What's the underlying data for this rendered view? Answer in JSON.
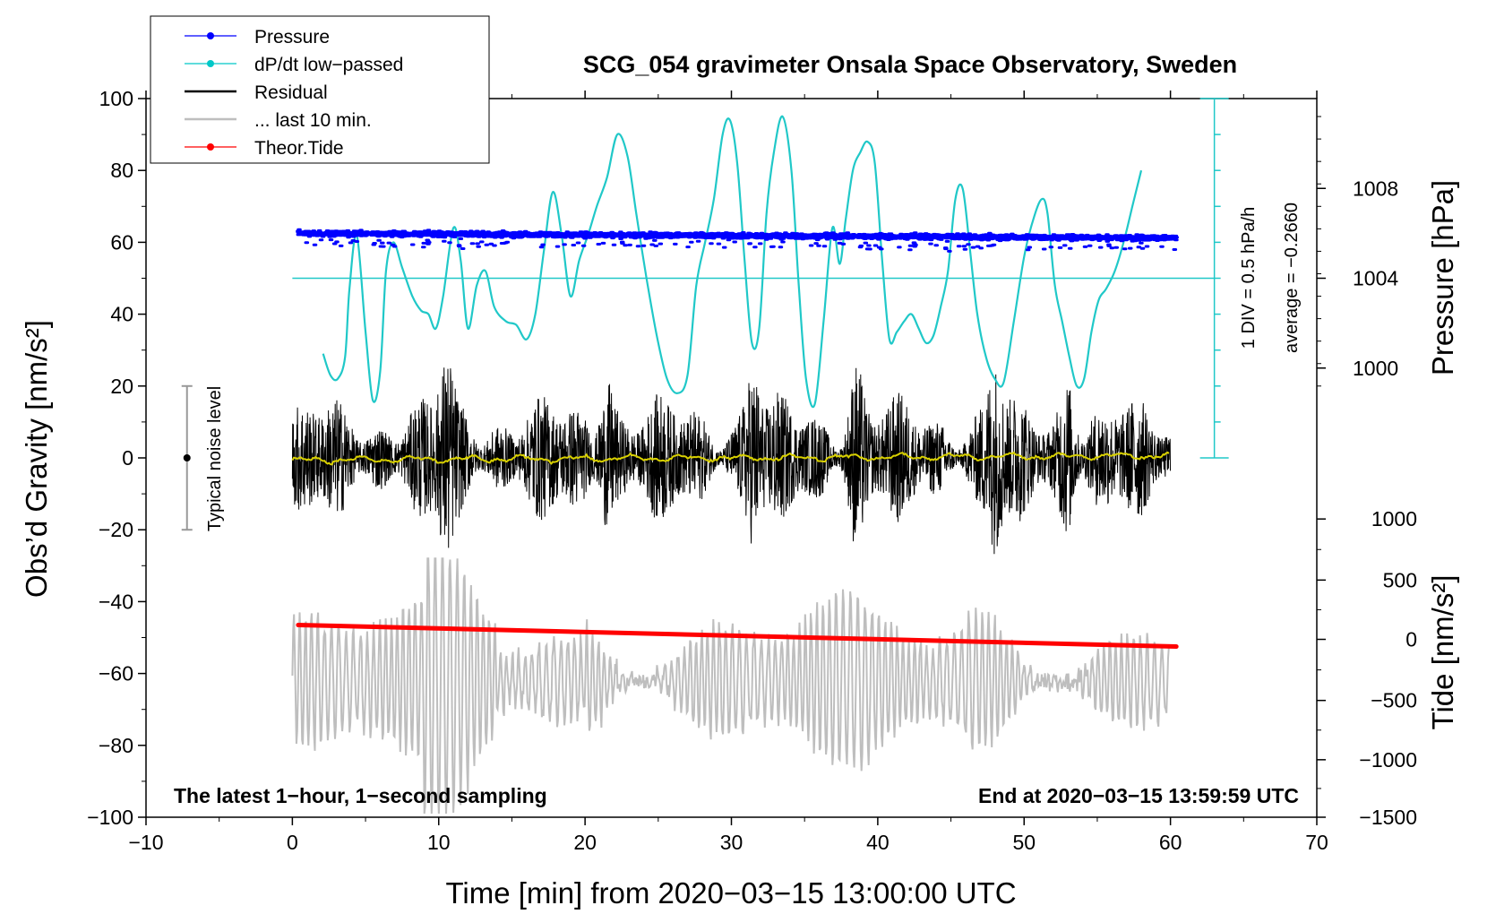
{
  "chart_data": {
    "type": "line",
    "title": "SCG_054 gravimeter Onsala Space Observatory, Sweden",
    "xlabel": "Time [min] from 2020−03−15 13:00:00 UTC",
    "ylabel_left": "Obs’d Gravity [nm/s²]",
    "ylabel_pressure": "Pressure [hPa]",
    "ylabel_tide": "Tide [nm/s²]",
    "xlim": [
      -10,
      70
    ],
    "ylim": [
      -100,
      100
    ],
    "x_ticks": [
      "−10",
      "0",
      "10",
      "20",
      "30",
      "40",
      "50",
      "60",
      "70"
    ],
    "x_tick_values": [
      -10,
      0,
      10,
      20,
      30,
      40,
      50,
      60,
      70
    ],
    "y_ticks": [
      "100",
      "80",
      "60",
      "40",
      "20",
      "0",
      "−20",
      "−40",
      "−60",
      "−80",
      "−100"
    ],
    "y_tick_values": [
      100,
      80,
      60,
      40,
      20,
      0,
      -20,
      -40,
      -60,
      -80,
      -100
    ],
    "pressure_axis": {
      "ticks": [
        "1008",
        "1004",
        "1000"
      ],
      "tick_values": [
        1008,
        1004,
        1000
      ],
      "maps_to_gravity": [
        75,
        50,
        25
      ]
    },
    "tide_axis": {
      "ticks": [
        "1000",
        "500",
        "0",
        "−500",
        "−1000",
        "−1500"
      ],
      "tick_values": [
        1000,
        500,
        0,
        -500,
        -1000,
        -1500
      ],
      "maps_to_gravity": [
        -17,
        -34,
        -50.5,
        -67.5,
        -84,
        -100
      ]
    },
    "legend": [
      {
        "label": "Pressure",
        "color": "#0000ff",
        "marker": "dot"
      },
      {
        "label": "dP/dt low−passed",
        "color": "#00c8c8",
        "marker": "dot"
      },
      {
        "label": "Residual",
        "color": "#000000",
        "marker": "line"
      },
      {
        "label": "... last 10 min.",
        "color": "#bebebe",
        "marker": "line"
      },
      {
        "label": "Theor.Tide",
        "color": "#ff0000",
        "marker": "dot"
      }
    ],
    "annotations": {
      "scale_bar": "1 DIV = 0.5 hPa/h",
      "average": "average = −0.2660",
      "noise_label": "Typical noise level",
      "bottom_left": "The latest 1−hour, 1−second sampling",
      "bottom_right": "End at 2020−03−15 13:59:59 UTC"
    },
    "noise_bar": {
      "x": -7.2,
      "center": 0,
      "half_range": 20
    },
    "dpdt_scale": {
      "x": 63,
      "y_min": 0,
      "y_max": 100,
      "divisions": 10,
      "reference_y": 50
    },
    "series": [
      {
        "name": "Pressure",
        "color": "#0000ff",
        "x_range": [
          0.4,
          60.4
        ],
        "values_hpa_start_end": [
          1006.3,
          1005.8
        ],
        "gravity_axis_start_end": [
          62.5,
          61.2
        ]
      },
      {
        "name": "dP/dt low-passed",
        "color": "#20c8c8",
        "x": [
          2.1,
          2.6,
          3.1,
          3.6,
          3.9,
          4.4,
          5.0,
          5.5,
          6.0,
          6.4,
          6.9,
          7.5,
          8.2,
          8.8,
          9.3,
          9.8,
          10.3,
          11.0,
          11.5,
          12.0,
          12.6,
          13.2,
          13.8,
          14.6,
          15.3,
          16.0,
          16.6,
          17.2,
          17.8,
          18.4,
          19.0,
          19.6,
          20.2,
          20.8,
          21.5,
          22.2,
          22.9,
          23.5,
          24.2,
          24.9,
          25.6,
          26.3,
          27.0,
          27.6,
          28.2,
          28.8,
          29.4,
          29.9,
          30.4,
          30.9,
          31.4,
          31.9,
          32.4,
          32.9,
          33.5,
          34.1,
          34.6,
          35.1,
          35.7,
          36.3,
          36.9,
          37.4,
          37.8,
          38.3,
          38.8,
          39.3,
          39.8,
          40.3,
          40.8,
          41.3,
          41.8,
          42.3,
          42.8,
          43.3,
          43.8,
          44.3,
          44.8,
          45.3,
          45.8,
          46.3,
          46.8,
          47.4,
          48.0,
          48.6,
          49.3,
          50.0,
          50.6,
          51.2,
          51.6,
          52.1,
          52.6,
          53.1,
          53.6,
          54.1,
          54.6,
          55.1,
          55.6,
          56.2,
          56.8,
          57.4,
          58.0
        ],
        "y": [
          29,
          23,
          22,
          28,
          47,
          62,
          35,
          16,
          24,
          52,
          60,
          53,
          45,
          41,
          40,
          36,
          45,
          64,
          55,
          36,
          48,
          52,
          42,
          38,
          37,
          33,
          40,
          58,
          74,
          62,
          45,
          55,
          62,
          70,
          78,
          90,
          84,
          68,
          50,
          34,
          22,
          18,
          23,
          48,
          60,
          72,
          90,
          94,
          82,
          55,
          32,
          36,
          68,
          85,
          95,
          80,
          48,
          22,
          15,
          38,
          64,
          54,
          66,
          80,
          85,
          88,
          82,
          55,
          33,
          35,
          38,
          40,
          36,
          32,
          34,
          42,
          52,
          72,
          75,
          58,
          40,
          28,
          22,
          21,
          38,
          56,
          66,
          72,
          68,
          48,
          38,
          28,
          20,
          22,
          35,
          44,
          47,
          52,
          60,
          70,
          80
        ]
      },
      {
        "name": "Residual",
        "color": "#000000",
        "x_range": [
          0,
          60
        ],
        "typical_amplitude": 12,
        "bursts_at_min": [
          10.5,
          21.5,
          31.5,
          38.5,
          48,
          53
        ]
      },
      {
        "name": "Residual (smoothed)",
        "color": "#d8d000",
        "x_range": [
          0,
          60
        ],
        "y": [
          -1,
          0,
          -0.5,
          0.5,
          0,
          1,
          0.5,
          1
        ]
      },
      {
        "name": "... last 10 min.",
        "color": "#bebebe",
        "x_range": [
          0,
          60
        ],
        "center": -62,
        "typical_amplitude": 15
      },
      {
        "name": "Theor.Tide",
        "color": "#ff0000",
        "x": [
          0.4,
          60.4
        ],
        "y": [
          -46.5,
          -52.5
        ]
      }
    ]
  }
}
